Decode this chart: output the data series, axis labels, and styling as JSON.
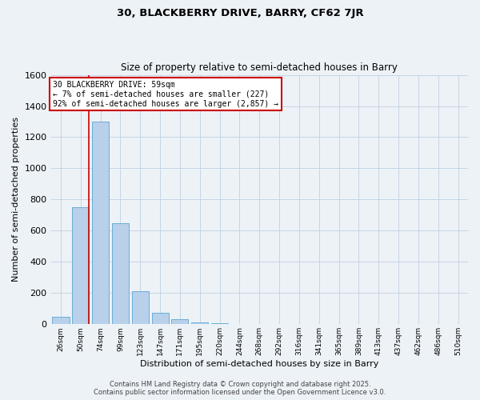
{
  "title_line1": "30, BLACKBERRY DRIVE, BARRY, CF62 7JR",
  "title_line2": "Size of property relative to semi-detached houses in Barry",
  "xlabel": "Distribution of semi-detached houses by size in Barry",
  "ylabel": "Number of semi-detached properties",
  "categories": [
    "26sqm",
    "50sqm",
    "74sqm",
    "99sqm",
    "123sqm",
    "147sqm",
    "171sqm",
    "195sqm",
    "220sqm",
    "244sqm",
    "268sqm",
    "292sqm",
    "316sqm",
    "341sqm",
    "365sqm",
    "389sqm",
    "413sqm",
    "437sqm",
    "462sqm",
    "486sqm",
    "510sqm"
  ],
  "values": [
    50,
    750,
    1300,
    650,
    210,
    75,
    30,
    10,
    5,
    0,
    0,
    0,
    0,
    0,
    0,
    0,
    0,
    0,
    0,
    0,
    0
  ],
  "bar_color": "#b8d0ea",
  "bar_edge_color": "#6baed6",
  "grid_color": "#c5d5e5",
  "background_color": "#edf2f7",
  "vline_color": "#cc0000",
  "annotation_text": "30 BLACKBERRY DRIVE: 59sqm\n← 7% of semi-detached houses are smaller (227)\n92% of semi-detached houses are larger (2,857) →",
  "annotation_box_color": "#ffffff",
  "annotation_box_edge": "#cc0000",
  "footer_text": "Contains HM Land Registry data © Crown copyright and database right 2025.\nContains public sector information licensed under the Open Government Licence v3.0.",
  "ylim": [
    0,
    1600
  ],
  "yticks": [
    0,
    200,
    400,
    600,
    800,
    1000,
    1200,
    1400,
    1600
  ]
}
